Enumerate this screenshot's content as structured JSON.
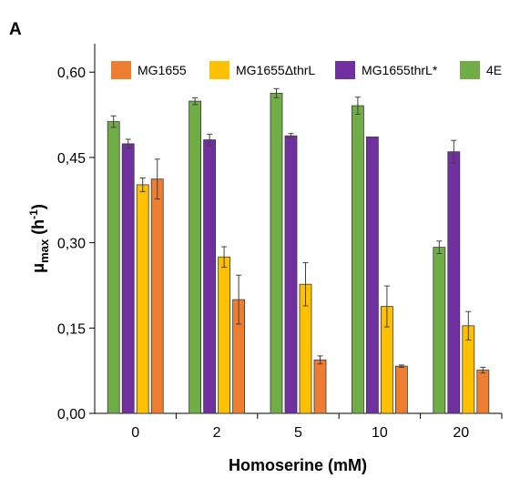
{
  "panel_label": "A",
  "chart_data": {
    "type": "bar",
    "title": "",
    "xlabel": "Homoserine (mM)",
    "ylabel": {
      "main": "μ",
      "sub": "max",
      "rest": " (h",
      "sup": "-1",
      "close": ")"
    },
    "categories": [
      "0",
      "2",
      "5",
      "10",
      "20"
    ],
    "ylim": [
      0,
      0.65
    ],
    "yticks": [
      0,
      0.15,
      0.3,
      0.45,
      0.6
    ],
    "ytick_labels": [
      "0,00",
      "0,15",
      "0,30",
      "0,45",
      "0,60"
    ],
    "grid": false,
    "legend_position": "top",
    "legend": [
      {
        "name": "MG1655",
        "color": "#ED7D31"
      },
      {
        "name": "MG1655ΔthrL",
        "color": "#FFC000"
      },
      {
        "name": "MG1655thrL*",
        "color": "#7030A0"
      },
      {
        "name": "4E",
        "color": "#70AD47"
      }
    ],
    "bar_order": [
      "4E",
      "MG1655thrL*",
      "MG1655ΔthrL",
      "MG1655"
    ],
    "series": [
      {
        "name": "4E",
        "color": "#70AD47",
        "values": [
          0.513,
          0.549,
          0.563,
          0.541,
          0.292
        ],
        "errors": [
          0.01,
          0.006,
          0.008,
          0.015,
          0.011
        ]
      },
      {
        "name": "MG1655thrL*",
        "color": "#7030A0",
        "values": [
          0.474,
          0.481,
          0.488,
          0.486,
          0.46
        ],
        "errors": [
          0.008,
          0.01,
          0.004,
          0.0,
          0.02
        ]
      },
      {
        "name": "MG1655ΔthrL",
        "color": "#FFC000",
        "values": [
          0.402,
          0.275,
          0.227,
          0.188,
          0.154
        ],
        "errors": [
          0.012,
          0.018,
          0.038,
          0.036,
          0.025
        ]
      },
      {
        "name": "MG1655",
        "color": "#ED7D31",
        "values": [
          0.412,
          0.2,
          0.094,
          0.083,
          0.076
        ],
        "errors": [
          0.035,
          0.043,
          0.007,
          0.002,
          0.005
        ]
      }
    ]
  }
}
